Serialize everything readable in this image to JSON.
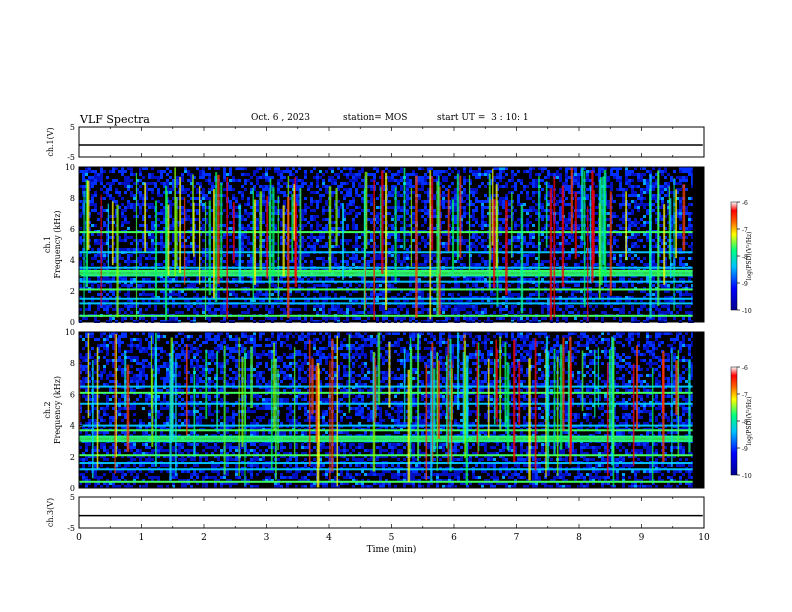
{
  "header": {
    "title": "VLF Spectra",
    "date": "Oct. 6 , 2023",
    "station": "station= MOS",
    "start_ut": "start UT =  3 : 10: 1"
  },
  "colors": {
    "background": "#000000",
    "line": "#000000",
    "colormap": [
      "#00008f",
      "#0000ff",
      "#00a0ff",
      "#00ffff",
      "#80ff80",
      "#ffff00",
      "#ff8000",
      "#ff0000",
      "#ffffff"
    ]
  },
  "chart_data": [
    {
      "type": "line",
      "name": "ch1-waveform",
      "ylabel": "ch.1(V)",
      "ylim": [
        -5,
        5
      ],
      "yticks": [
        "5",
        "-5"
      ],
      "xlim": [
        0,
        10
      ],
      "level": -1
    },
    {
      "type": "heatmap",
      "name": "ch1-spectrogram",
      "ylabel": "ch.1\nFrequency (kHz)",
      "ylabel_lines": [
        "ch.1",
        "Frequency (kHz)"
      ],
      "ylim": [
        0,
        10
      ],
      "yticks": [
        "0",
        "2",
        "4",
        "6",
        "8",
        "10"
      ],
      "xlim": [
        0,
        10
      ],
      "data_end_min": 9.82,
      "colorbar": {
        "label": "log(PSD)(V²/Hz)",
        "range": [
          -10,
          -6
        ],
        "ticks": [
          "-6",
          "-7",
          "-8",
          "-9",
          "-10"
        ]
      },
      "bands_khz": [
        0.4,
        1.2,
        1.5,
        2.1,
        2.6,
        3.0,
        3.3,
        3.5,
        4.5,
        5.8
      ]
    },
    {
      "type": "heatmap",
      "name": "ch2-spectrogram",
      "ylabel": "ch.2\nFrequency (kHz)",
      "ylabel_lines": [
        "ch.2",
        "Frequency (kHz)"
      ],
      "ylim": [
        0,
        10
      ],
      "yticks": [
        "0",
        "2",
        "4",
        "6",
        "8",
        "10"
      ],
      "xlim": [
        0,
        10
      ],
      "data_end_min": 9.82,
      "colorbar": {
        "label": "log(PSD)(V²/Hz)",
        "range": [
          -10,
          -6
        ],
        "ticks": [
          "-6",
          "-7",
          "-8",
          "-9",
          "-10"
        ]
      },
      "bands_khz": [
        0.4,
        1.2,
        1.6,
        2.1,
        3.0,
        3.3,
        3.7,
        4.0,
        5.4,
        6.1,
        6.5
      ]
    },
    {
      "type": "line",
      "name": "ch3-waveform",
      "ylabel": "ch.3(V)",
      "ylim": [
        -5,
        5
      ],
      "yticks": [
        "5",
        "-5"
      ],
      "xlim": [
        0,
        10
      ],
      "level": -1
    }
  ],
  "xaxis": {
    "label": "Time (min)",
    "ticks": [
      "0",
      "1",
      "2",
      "3",
      "4",
      "5",
      "6",
      "7",
      "8",
      "9",
      "10"
    ]
  }
}
